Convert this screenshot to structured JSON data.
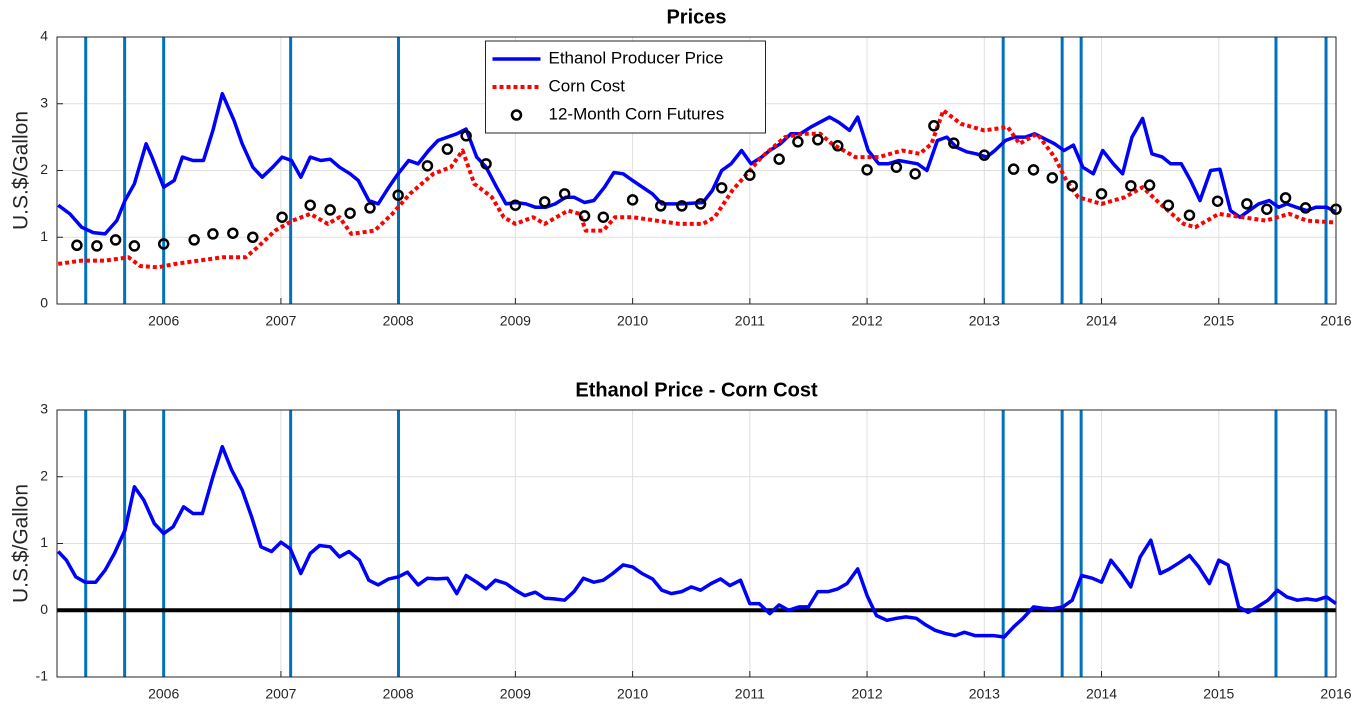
{
  "chart_data": [
    {
      "type": "line",
      "title": "Prices",
      "ylabel": "U.S.$/Gallon",
      "xlim": [
        2005.09,
        2016.0
      ],
      "xticks": [
        2006,
        2007,
        2008,
        2009,
        2010,
        2011,
        2012,
        2013,
        2014,
        2015,
        2016
      ],
      "ylim": [
        0,
        4
      ],
      "yticks": [
        0,
        1,
        2,
        3,
        4
      ],
      "grid": true,
      "legend": "north",
      "event_lines": {
        "color": "#0072bd",
        "x": [
          2005.335,
          2005.667,
          2006.0,
          2007.083,
          2008.003,
          2013.161,
          2013.664,
          2013.826,
          2015.488,
          2015.915
        ]
      },
      "series": [
        {
          "name": "Ethanol Producer Price",
          "color": "#0000ff",
          "style": "solid",
          "x": [
            2005.1,
            2005.2,
            2005.3,
            2005.4,
            2005.5,
            2005.6,
            2005.67,
            2005.75,
            2005.85,
            2005.9,
            2006.0,
            2006.09,
            2006.16,
            2006.25,
            2006.34,
            2006.42,
            2006.5,
            2006.6,
            2006.67,
            2006.76,
            2006.84,
            2006.93,
            2007.01,
            2007.09,
            2007.17,
            2007.25,
            2007.34,
            2007.42,
            2007.5,
            2007.59,
            2007.66,
            2007.75,
            2007.83,
            2007.92,
            2008.0,
            2008.09,
            2008.17,
            2008.26,
            2008.34,
            2008.42,
            2008.5,
            2008.58,
            2008.67,
            2008.75,
            2008.84,
            2008.92,
            2009.0,
            2009.09,
            2009.17,
            2009.26,
            2009.34,
            2009.43,
            2009.5,
            2009.59,
            2009.67,
            2009.76,
            2009.84,
            2009.92,
            2010.0,
            2010.17,
            2010.25,
            2010.42,
            2010.6,
            2010.68,
            2010.76,
            2010.84,
            2010.93,
            2011.01,
            2011.1,
            2011.17,
            2011.26,
            2011.35,
            2011.43,
            2011.52,
            2011.68,
            2011.76,
            2011.85,
            2011.92,
            2012.01,
            2012.1,
            2012.18,
            2012.27,
            2012.43,
            2012.51,
            2012.6,
            2012.68,
            2012.76,
            2012.85,
            2012.93,
            2013.02,
            2013.09,
            2013.18,
            2013.26,
            2013.35,
            2013.43,
            2013.6,
            2013.68,
            2013.76,
            2013.84,
            2013.93,
            2014.01,
            2014.1,
            2014.18,
            2014.26,
            2014.35,
            2014.43,
            2014.52,
            2014.59,
            2014.68,
            2014.76,
            2014.84,
            2014.93,
            2015.01,
            2015.1,
            2015.18,
            2015.26,
            2015.34,
            2015.43,
            2015.51,
            2015.58,
            2015.66,
            2015.75,
            2015.83,
            2015.92,
            2016.0
          ],
          "values": [
            1.48,
            1.35,
            1.15,
            1.07,
            1.05,
            1.25,
            1.55,
            1.8,
            2.4,
            2.2,
            1.75,
            1.85,
            2.2,
            2.15,
            2.15,
            2.6,
            3.15,
            2.75,
            2.4,
            2.05,
            1.9,
            2.05,
            2.2,
            2.15,
            1.9,
            2.2,
            2.15,
            2.17,
            2.05,
            1.95,
            1.85,
            1.55,
            1.5,
            1.75,
            1.95,
            2.15,
            2.1,
            2.3,
            2.45,
            2.5,
            2.55,
            2.62,
            2.2,
            2.05,
            1.75,
            1.5,
            1.52,
            1.5,
            1.45,
            1.45,
            1.5,
            1.6,
            1.6,
            1.52,
            1.55,
            1.75,
            1.97,
            1.95,
            1.85,
            1.65,
            1.5,
            1.5,
            1.52,
            1.7,
            2.0,
            2.1,
            2.3,
            2.1,
            2.2,
            2.3,
            2.4,
            2.55,
            2.55,
            2.65,
            2.8,
            2.72,
            2.6,
            2.8,
            2.3,
            2.1,
            2.1,
            2.15,
            2.1,
            2.0,
            2.45,
            2.5,
            2.35,
            2.28,
            2.25,
            2.2,
            2.3,
            2.45,
            2.5,
            2.5,
            2.55,
            2.4,
            2.3,
            2.38,
            2.05,
            1.95,
            2.3,
            2.1,
            1.95,
            2.5,
            2.78,
            2.25,
            2.2,
            2.1,
            2.1,
            1.85,
            1.55,
            2.0,
            2.02,
            1.4,
            1.3,
            1.4,
            1.5,
            1.55,
            1.45,
            1.5,
            1.45,
            1.4,
            1.45,
            1.45,
            1.38
          ]
        },
        {
          "name": "Corn Cost",
          "color": "#ff0000",
          "style": "dotted",
          "x": [
            2005.1,
            2005.3,
            2005.5,
            2005.7,
            2005.8,
            2005.95,
            2006.1,
            2006.3,
            2006.5,
            2006.7,
            2006.8,
            2006.95,
            2007.1,
            2007.25,
            2007.4,
            2007.5,
            2007.6,
            2007.8,
            2007.95,
            2008.1,
            2008.3,
            2008.45,
            2008.55,
            2008.65,
            2008.8,
            2008.9,
            2009.0,
            2009.15,
            2009.25,
            2009.45,
            2009.55,
            2009.6,
            2009.75,
            2009.85,
            2010.0,
            2010.2,
            2010.4,
            2010.6,
            2010.7,
            2010.85,
            2011.0,
            2011.1,
            2011.3,
            2011.45,
            2011.6,
            2011.7,
            2011.9,
            2012.1,
            2012.3,
            2012.45,
            2012.55,
            2012.65,
            2012.8,
            2013.0,
            2013.2,
            2013.3,
            2013.45,
            2013.6,
            2013.7,
            2013.8,
            2014.0,
            2014.2,
            2014.35,
            2014.5,
            2014.7,
            2014.8,
            2015.0,
            2015.2,
            2015.4,
            2015.6,
            2015.75,
            2016.0
          ],
          "values": [
            0.6,
            0.65,
            0.65,
            0.7,
            0.57,
            0.55,
            0.6,
            0.65,
            0.7,
            0.7,
            0.85,
            1.1,
            1.25,
            1.35,
            1.2,
            1.3,
            1.05,
            1.1,
            1.35,
            1.65,
            1.95,
            2.05,
            2.3,
            1.8,
            1.6,
            1.3,
            1.2,
            1.3,
            1.2,
            1.4,
            1.35,
            1.1,
            1.1,
            1.3,
            1.3,
            1.25,
            1.2,
            1.2,
            1.3,
            1.7,
            2.0,
            2.2,
            2.5,
            2.55,
            2.55,
            2.4,
            2.2,
            2.2,
            2.3,
            2.25,
            2.4,
            2.9,
            2.7,
            2.6,
            2.65,
            2.4,
            2.55,
            2.2,
            1.85,
            1.6,
            1.5,
            1.6,
            1.75,
            1.5,
            1.2,
            1.15,
            1.35,
            1.3,
            1.25,
            1.35,
            1.25,
            1.22
          ]
        },
        {
          "name": "12-Month Corn Futures",
          "color": "#000000",
          "style": "markers",
          "x": [
            2005.26,
            2005.43,
            2005.59,
            2005.75,
            2006.0,
            2006.26,
            2006.42,
            2006.59,
            2006.76,
            2007.01,
            2007.25,
            2007.42,
            2007.59,
            2007.76,
            2008.0,
            2008.25,
            2008.42,
            2008.58,
            2008.75,
            2009.0,
            2009.25,
            2009.42,
            2009.59,
            2009.75,
            2010.0,
            2010.24,
            2010.42,
            2010.58,
            2010.76,
            2011.0,
            2011.25,
            2011.41,
            2011.58,
            2011.75,
            2012.0,
            2012.25,
            2012.41,
            2012.57,
            2012.74,
            2013.0,
            2013.25,
            2013.42,
            2013.58,
            2013.75,
            2014.0,
            2014.25,
            2014.41,
            2014.57,
            2014.75,
            2014.99,
            2015.24,
            2015.41,
            2015.57,
            2015.74,
            2016.0
          ],
          "values": [
            0.88,
            0.87,
            0.96,
            0.87,
            0.9,
            0.96,
            1.05,
            1.06,
            1.0,
            1.3,
            1.48,
            1.41,
            1.36,
            1.44,
            1.63,
            2.07,
            2.32,
            2.52,
            2.1,
            1.48,
            1.53,
            1.65,
            1.32,
            1.3,
            1.56,
            1.47,
            1.47,
            1.5,
            1.74,
            1.93,
            2.17,
            2.43,
            2.46,
            2.37,
            2.01,
            2.05,
            1.95,
            2.67,
            2.41,
            2.23,
            2.02,
            2.01,
            1.89,
            1.77,
            1.65,
            1.77,
            1.78,
            1.48,
            1.33,
            1.54,
            1.5,
            1.42,
            1.59,
            1.44,
            1.42
          ]
        }
      ]
    },
    {
      "type": "line",
      "title": "Ethanol Price - Corn Cost",
      "ylabel": "U.S.$/Gallon",
      "xlim": [
        2005.09,
        2016.0
      ],
      "xticks": [
        2006,
        2007,
        2008,
        2009,
        2010,
        2011,
        2012,
        2013,
        2014,
        2015,
        2016
      ],
      "ylim": [
        -1,
        3
      ],
      "yticks": [
        -1,
        0,
        1,
        2,
        3
      ],
      "grid": true,
      "hline": 0,
      "event_lines": {
        "color": "#0072bd",
        "x": [
          2005.335,
          2005.667,
          2006.0,
          2007.083,
          2008.003,
          2013.161,
          2013.664,
          2013.826,
          2015.488,
          2015.915
        ]
      },
      "series": [
        {
          "color": "#0000ff",
          "style": "solid",
          "x": [
            2005.1,
            2005.17,
            2005.25,
            2005.33,
            2005.42,
            2005.5,
            2005.58,
            2005.67,
            2005.75,
            2005.83,
            2005.92,
            2006.0,
            2006.08,
            2006.17,
            2006.25,
            2006.33,
            2006.42,
            2006.5,
            2006.58,
            2006.67,
            2006.75,
            2006.83,
            2006.92,
            2007.0,
            2007.08,
            2007.17,
            2007.25,
            2007.33,
            2007.42,
            2007.5,
            2007.58,
            2007.67,
            2007.75,
            2007.83,
            2007.92,
            2008.0,
            2008.08,
            2008.17,
            2008.25,
            2008.33,
            2008.42,
            2008.5,
            2008.58,
            2008.67,
            2008.75,
            2008.83,
            2008.92,
            2009.0,
            2009.08,
            2009.17,
            2009.25,
            2009.33,
            2009.42,
            2009.5,
            2009.58,
            2009.67,
            2009.75,
            2009.83,
            2009.92,
            2010.0,
            2010.08,
            2010.17,
            2010.25,
            2010.33,
            2010.42,
            2010.5,
            2010.58,
            2010.67,
            2010.75,
            2010.83,
            2010.92,
            2011.0,
            2011.08,
            2011.17,
            2011.25,
            2011.33,
            2011.42,
            2011.5,
            2011.58,
            2011.67,
            2011.75,
            2011.83,
            2011.92,
            2012.0,
            2012.08,
            2012.17,
            2012.25,
            2012.33,
            2012.42,
            2012.5,
            2012.58,
            2012.67,
            2012.75,
            2012.83,
            2012.92,
            2013.0,
            2013.08,
            2013.17,
            2013.25,
            2013.33,
            2013.42,
            2013.5,
            2013.58,
            2013.67,
            2013.75,
            2013.83,
            2013.92,
            2014.0,
            2014.08,
            2014.17,
            2014.25,
            2014.33,
            2014.42,
            2014.5,
            2014.58,
            2014.67,
            2014.75,
            2014.83,
            2014.92,
            2015.0,
            2015.08,
            2015.17,
            2015.25,
            2015.33,
            2015.42,
            2015.5,
            2015.58,
            2015.67,
            2015.75,
            2015.83,
            2015.92,
            2016.0
          ],
          "values": [
            0.88,
            0.75,
            0.5,
            0.42,
            0.42,
            0.6,
            0.85,
            1.2,
            1.85,
            1.65,
            1.3,
            1.15,
            1.25,
            1.55,
            1.45,
            1.45,
            2.0,
            2.45,
            2.1,
            1.8,
            1.4,
            0.95,
            0.88,
            1.02,
            0.92,
            0.55,
            0.85,
            0.97,
            0.95,
            0.8,
            0.88,
            0.75,
            0.45,
            0.38,
            0.47,
            0.5,
            0.57,
            0.38,
            0.48,
            0.47,
            0.48,
            0.25,
            0.52,
            0.42,
            0.32,
            0.45,
            0.4,
            0.3,
            0.22,
            0.27,
            0.18,
            0.17,
            0.15,
            0.28,
            0.48,
            0.42,
            0.45,
            0.55,
            0.68,
            0.65,
            0.55,
            0.47,
            0.3,
            0.25,
            0.28,
            0.35,
            0.3,
            0.4,
            0.47,
            0.37,
            0.45,
            0.1,
            0.1,
            -0.05,
            0.08,
            0.0,
            0.05,
            0.05,
            0.28,
            0.28,
            0.32,
            0.4,
            0.62,
            0.22,
            -0.08,
            -0.15,
            -0.12,
            -0.1,
            -0.12,
            -0.22,
            -0.3,
            -0.35,
            -0.38,
            -0.33,
            -0.38,
            -0.38,
            -0.38,
            -0.4,
            -0.25,
            -0.12,
            0.05,
            0.03,
            0.02,
            0.05,
            0.15,
            0.52,
            0.48,
            0.42,
            0.75,
            0.55,
            0.35,
            0.8,
            1.05,
            0.55,
            0.62,
            0.72,
            0.82,
            0.65,
            0.4,
            0.75,
            0.68,
            0.05,
            -0.03,
            0.05,
            0.15,
            0.3,
            0.2,
            0.15,
            0.17,
            0.15,
            0.2,
            0.1
          ]
        }
      ]
    }
  ]
}
